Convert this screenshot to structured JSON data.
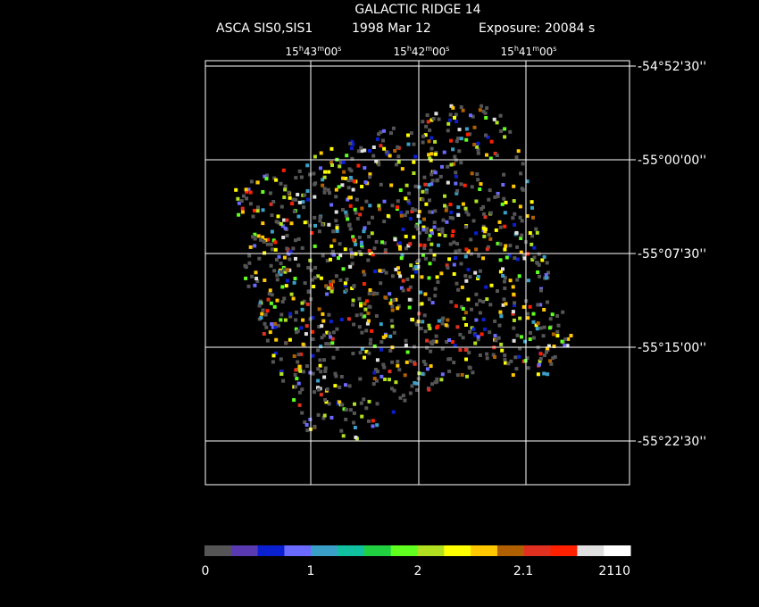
{
  "header": {
    "title": "GALACTIC RIDGE 14",
    "instrument": "ASCA SIS0,SIS1",
    "date": "1998 Mar 12",
    "exposure": "Exposure: 20084 s"
  },
  "ra_labels": [
    [
      "15",
      "h",
      "43",
      "m",
      "00",
      "s"
    ],
    [
      "15",
      "h",
      "42",
      "m",
      "00",
      "s"
    ],
    [
      "15",
      "h",
      "41",
      "m",
      "00",
      "s"
    ]
  ],
  "dec_labels": [
    "-54°52'30''",
    "-55°00'00''",
    "-55°07'30''",
    "-55°15'00''",
    "-55°22'30''"
  ],
  "colorbar": {
    "colors": [
      "#555555",
      "#5a3ab0",
      "#0a1fd0",
      "#6a6aff",
      "#3aa0c8",
      "#10c0a0",
      "#20d040",
      "#60ff20",
      "#b0e020",
      "#ffff00",
      "#ffc800",
      "#b06000",
      "#e03020",
      "#ff2000",
      "#e0e0e0",
      "#ffffff"
    ],
    "labels": [
      "0",
      "1",
      "2",
      "2.1",
      "2110"
    ]
  }
}
